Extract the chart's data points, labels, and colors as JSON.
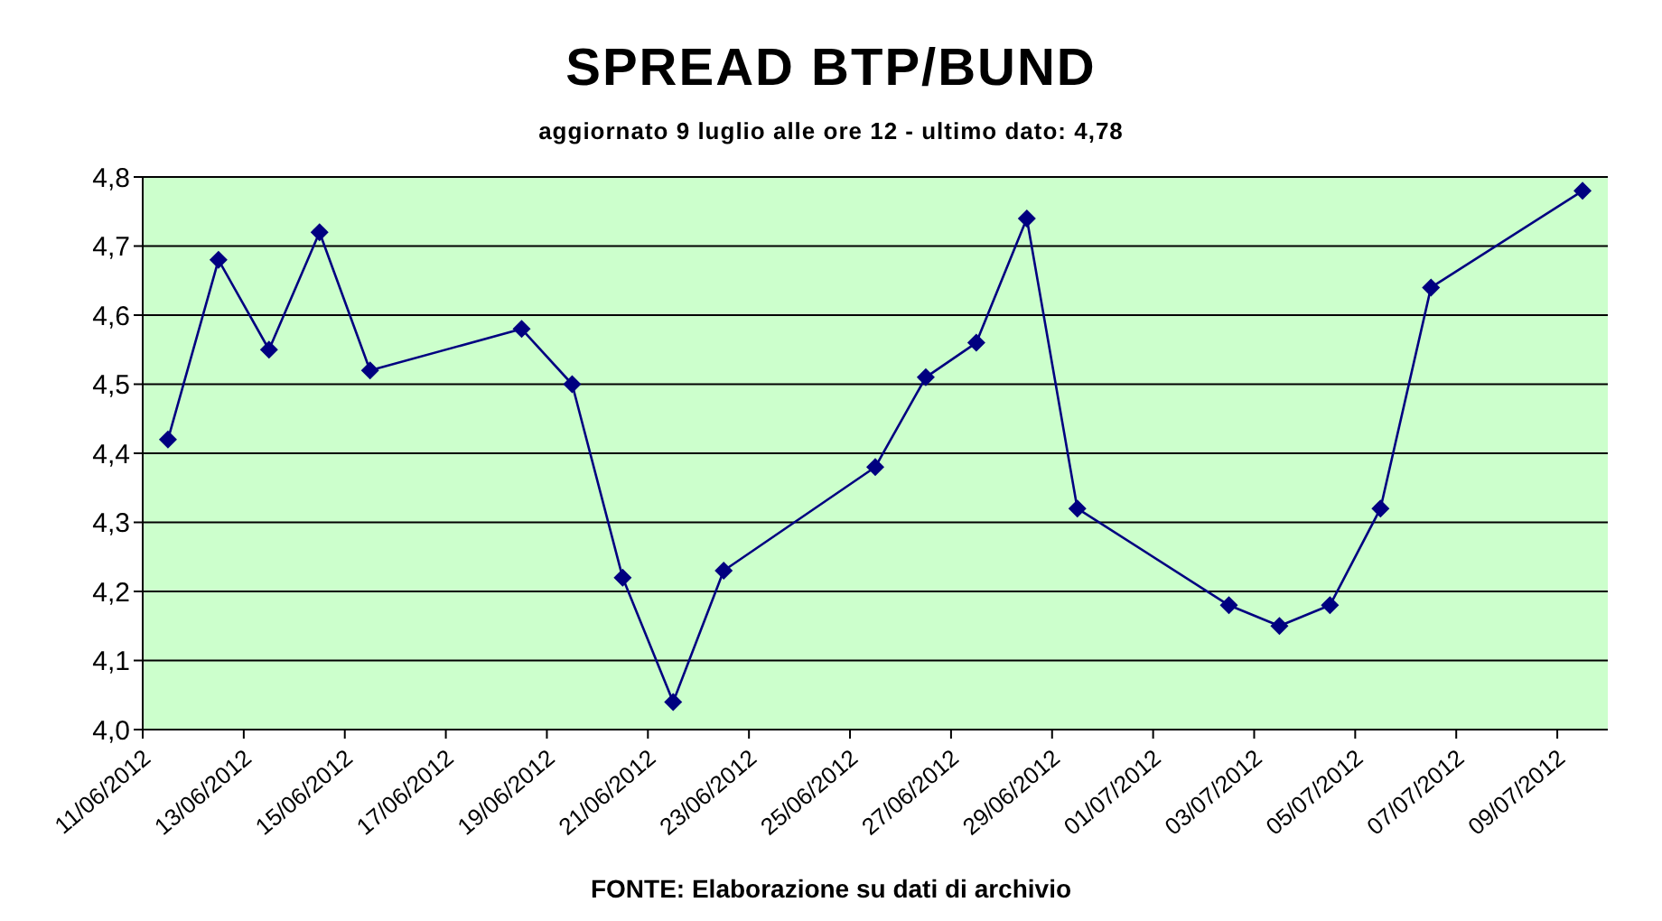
{
  "chart_data": {
    "type": "line",
    "title": "SPREAD BTP/BUND",
    "subtitle": "aggiornato 9 luglio alle ore 12 - ultimo dato: 4,78",
    "annotations": [
      "FONTE: Elaborazione su dati di archivio"
    ],
    "x": [
      "2012-06-11T12:00",
      "2012-06-12T12:00",
      "2012-06-13T12:00",
      "2012-06-14T12:00",
      "2012-06-15T12:00",
      "2012-06-18T12:00",
      "2012-06-19T12:00",
      "2012-06-20T12:00",
      "2012-06-21T12:00",
      "2012-06-22T12:00",
      "2012-06-25T12:00",
      "2012-06-26T12:00",
      "2012-06-27T12:00",
      "2012-06-28T12:00",
      "2012-06-29T12:00",
      "2012-07-02T12:00",
      "2012-07-03T12:00",
      "2012-07-04T12:00",
      "2012-07-05T12:00",
      "2012-07-06T12:00",
      "2012-07-09T12:00"
    ],
    "series": [
      {
        "color": "#000080",
        "values": [
          4.42,
          4.68,
          4.55,
          4.72,
          4.52,
          4.58,
          4.5,
          4.22,
          4.04,
          4.23,
          4.38,
          4.51,
          4.56,
          4.74,
          4.32,
          4.18,
          4.15,
          4.18,
          4.32,
          4.64,
          4.78
        ]
      }
    ],
    "xlim": [
      "2012-06-11",
      "2012-07-10"
    ],
    "xticks": [
      {
        "value": "2012-06-11",
        "label": "11/06/2012"
      },
      {
        "value": "2012-06-13",
        "label": "13/06/2012"
      },
      {
        "value": "2012-06-15",
        "label": "15/06/2012"
      },
      {
        "value": "2012-06-17",
        "label": "17/06/2012"
      },
      {
        "value": "2012-06-19",
        "label": "19/06/2012"
      },
      {
        "value": "2012-06-21",
        "label": "21/06/2012"
      },
      {
        "value": "2012-06-23",
        "label": "23/06/2012"
      },
      {
        "value": "2012-06-25",
        "label": "25/06/2012"
      },
      {
        "value": "2012-06-27",
        "label": "27/06/2012"
      },
      {
        "value": "2012-06-29",
        "label": "29/06/2012"
      },
      {
        "value": "2012-07-01",
        "label": "01/07/2012"
      },
      {
        "value": "2012-07-03",
        "label": "03/07/2012"
      },
      {
        "value": "2012-07-05",
        "label": "05/07/2012"
      },
      {
        "value": "2012-07-07",
        "label": "07/07/2012"
      },
      {
        "value": "2012-07-09",
        "label": "09/07/2012"
      }
    ],
    "ylim": [
      4.0,
      4.8
    ],
    "yticks": [
      {
        "value": 4.0,
        "label": "4,0"
      },
      {
        "value": 4.1,
        "label": "4,1"
      },
      {
        "value": 4.2,
        "label": "4,2"
      },
      {
        "value": 4.3,
        "label": "4,3"
      },
      {
        "value": 4.4,
        "label": "4,4"
      },
      {
        "value": 4.5,
        "label": "4,5"
      },
      {
        "value": 4.6,
        "label": "4,6"
      },
      {
        "value": 4.7,
        "label": "4,7"
      },
      {
        "value": 4.8,
        "label": "4,8"
      }
    ],
    "grid": "y",
    "marker": "diamond",
    "line_style": "solid"
  }
}
